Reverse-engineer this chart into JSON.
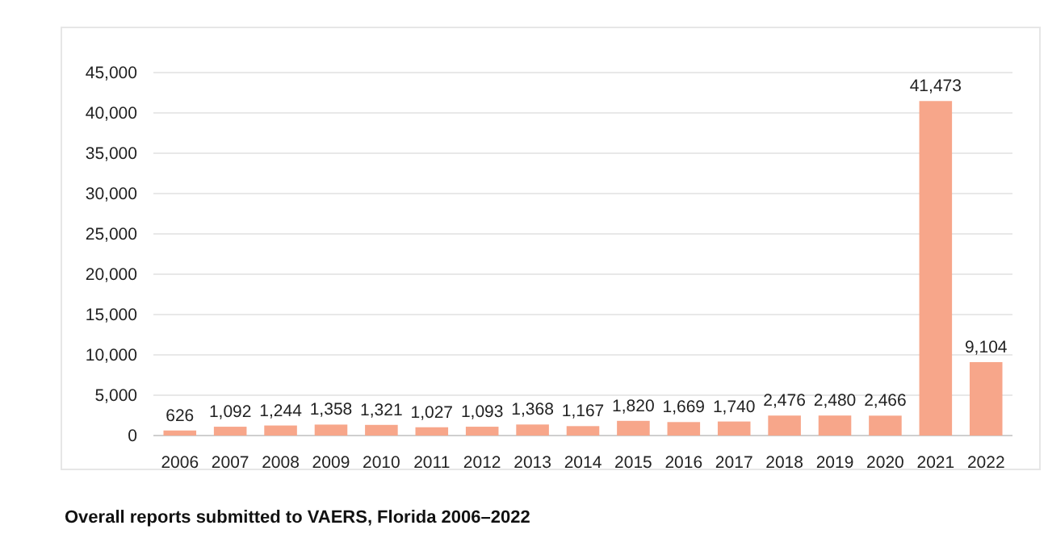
{
  "chart_data": {
    "type": "bar",
    "categories": [
      "2006",
      "2007",
      "2008",
      "2009",
      "2010",
      "2011",
      "2012",
      "2013",
      "2014",
      "2015",
      "2016",
      "2017",
      "2018",
      "2019",
      "2020",
      "2021",
      "2022"
    ],
    "values": [
      626,
      1092,
      1244,
      1358,
      1321,
      1027,
      1093,
      1368,
      1167,
      1820,
      1669,
      1740,
      2476,
      2480,
      2466,
      41473,
      9104
    ],
    "color": "#f7a68a",
    "ylim": [
      0,
      45000
    ],
    "yticks": [
      {
        "value": 0,
        "label": "0"
      },
      {
        "value": 5000,
        "label": "5,000"
      },
      {
        "value": 10000,
        "label": "10,000"
      },
      {
        "value": 15000,
        "label": "15,000"
      },
      {
        "value": 20000,
        "label": "20,000"
      },
      {
        "value": 25000,
        "label": "25,000"
      },
      {
        "value": 30000,
        "label": "30,000"
      },
      {
        "value": 35000,
        "label": "35,000"
      },
      {
        "value": 40000,
        "label": "40,000"
      },
      {
        "value": 45000,
        "label": "45,000"
      }
    ],
    "grid": "y",
    "value_labels": [
      "626",
      "1,092",
      "1,244",
      "1,358",
      "1,321",
      "1,027",
      "1,093",
      "1,368",
      "1,167",
      "1,820",
      "1,669",
      "1,740",
      "2,476",
      "2,480",
      "2,466",
      "41,473",
      "9,104"
    ],
    "annotations": [
      "Overall reports submitted to VAERS, Florida 2006–2022"
    ]
  }
}
